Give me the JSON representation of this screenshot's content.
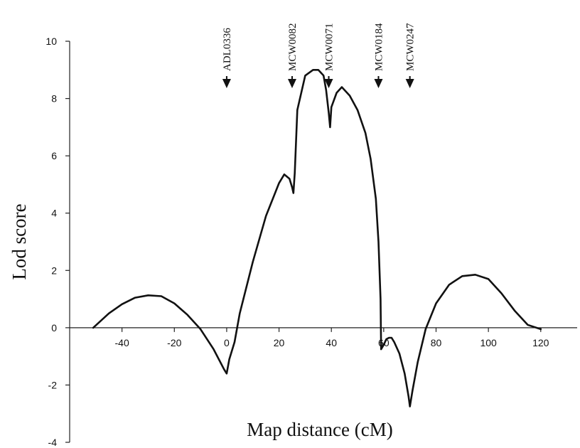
{
  "chart_data": {
    "type": "line",
    "title": "",
    "xlabel": "Map distance (cM)",
    "ylabel": "Lod score",
    "xlim": [
      -60,
      135
    ],
    "ylim": [
      -4,
      10
    ],
    "xticks": [
      -40,
      -20,
      0,
      20,
      40,
      60,
      80,
      100,
      120
    ],
    "yticks": [
      -4,
      -2,
      0,
      2,
      4,
      6,
      8,
      10
    ],
    "grid": false,
    "series": [
      {
        "x": [
          -51,
          -45,
          -40,
          -35,
          -30,
          -25,
          -20,
          -15,
          -10,
          -5,
          -1,
          0,
          1,
          3,
          5,
          10,
          15,
          20,
          22,
          24,
          25,
          25.5,
          26,
          27,
          30,
          33,
          35,
          37,
          38,
          39,
          39.5,
          40,
          42,
          44,
          47,
          50,
          53,
          55,
          57,
          58,
          58.8,
          59,
          60,
          61,
          62,
          63,
          64,
          66,
          68,
          69.5,
          70,
          71,
          73,
          76,
          80,
          85,
          90,
          95,
          100,
          105,
          110,
          115,
          120
        ],
        "y": [
          0,
          0.5,
          0.82,
          1.05,
          1.13,
          1.1,
          0.85,
          0.45,
          -0.05,
          -0.75,
          -1.45,
          -1.6,
          -1.1,
          -0.5,
          0.5,
          2.3,
          3.9,
          5.05,
          5.35,
          5.2,
          4.9,
          4.7,
          5.4,
          7.6,
          8.8,
          9.0,
          9.0,
          8.8,
          8.3,
          7.5,
          7.0,
          7.7,
          8.2,
          8.4,
          8.1,
          7.6,
          6.8,
          5.9,
          4.5,
          3.0,
          1.0,
          -0.75,
          -0.6,
          -0.4,
          -0.35,
          -0.35,
          -0.5,
          -0.9,
          -1.6,
          -2.4,
          -2.75,
          -2.2,
          -1.2,
          -0.05,
          0.85,
          1.5,
          1.8,
          1.85,
          1.7,
          1.2,
          0.6,
          0.1,
          -0.05
        ]
      }
    ],
    "markers": [
      {
        "label": "ADL0336",
        "x": 0
      },
      {
        "label": "MCW0082",
        "x": 25
      },
      {
        "label": "MCW0071",
        "x": 39
      },
      {
        "label": "MCW0184",
        "x": 58
      },
      {
        "label": "MCW0247",
        "x": 70
      }
    ]
  }
}
